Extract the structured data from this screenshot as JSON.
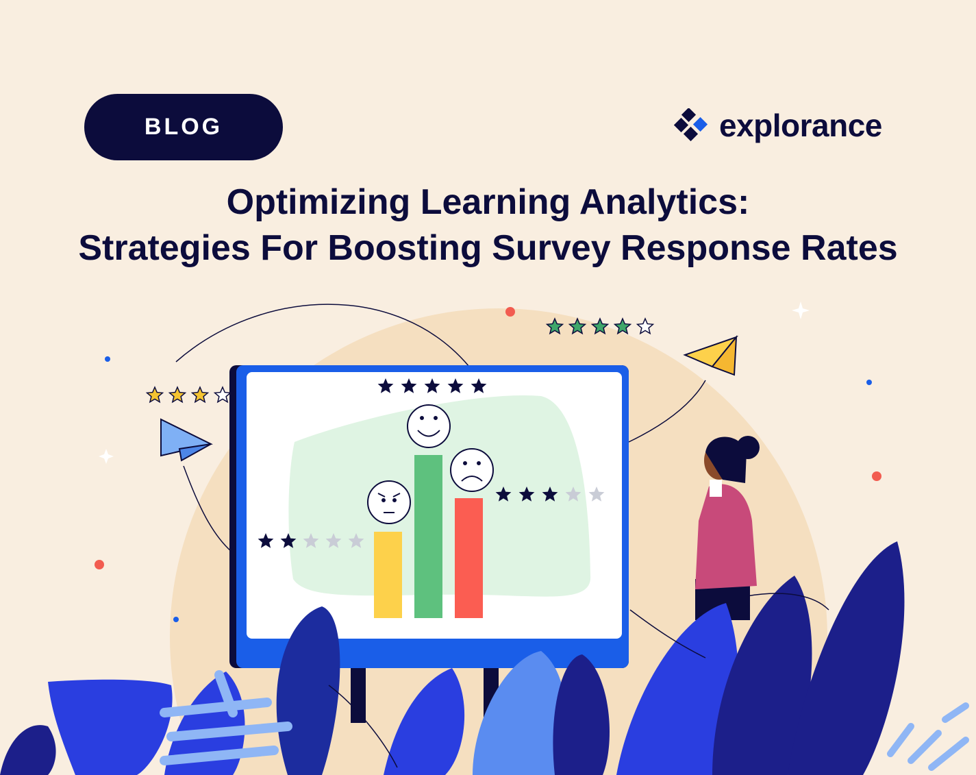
{
  "badge": {
    "label": "BLOG"
  },
  "brand": {
    "name": "explorance",
    "icon": "explorance-diamond-logo-icon"
  },
  "title": {
    "line1": "Optimizing Learning Analytics:",
    "line2": "Strategies For Boosting Survey Response Rates"
  },
  "illustration": {
    "ratings": [
      {
        "where": "top-left",
        "filled": 3,
        "total": 4,
        "color": "#f5c431"
      },
      {
        "where": "top-right",
        "filled": 4,
        "total": 5,
        "color": "#3fa66a"
      },
      {
        "where": "monitor-top",
        "filled": 5,
        "total": 5,
        "color": "#0c0c3c"
      },
      {
        "where": "monitor-left",
        "filled": 2,
        "total": 5,
        "color": "#0c0c3c"
      },
      {
        "where": "monitor-right",
        "filled": 3,
        "total": 5,
        "color": "#0c0c3c"
      }
    ],
    "bars": [
      {
        "face": "angry",
        "color": "#fdd14b",
        "value": 2
      },
      {
        "face": "happy",
        "color": "#5ec17e",
        "value": 5
      },
      {
        "face": "sad",
        "color": "#fb5d52",
        "value": 3
      }
    ]
  },
  "colors": {
    "background": "#f9eee0",
    "navy": "#0c0c3c",
    "accent_blue": "#1a5ee8",
    "circle": "#f5dfc0"
  }
}
